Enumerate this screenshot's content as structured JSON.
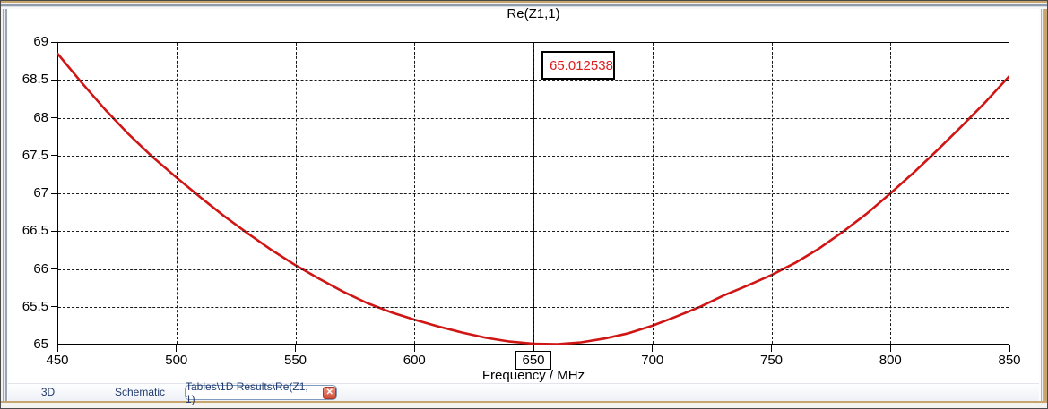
{
  "chart_data": {
    "type": "line",
    "title": "Re(Z1,1)",
    "xlabel": "Frequency / MHz",
    "ylabel": "",
    "xlim": [
      450,
      850
    ],
    "ylim": [
      65,
      69
    ],
    "xticks": [
      450,
      500,
      550,
      600,
      650,
      700,
      750,
      800,
      850
    ],
    "yticks": [
      65,
      65.5,
      66,
      66.5,
      67,
      67.5,
      68,
      68.5,
      69
    ],
    "grid": true,
    "grid_style": "dashed",
    "series": [
      {
        "name": "Re(Z1,1)",
        "color": "#d01515",
        "x": [
          450,
          460,
          470,
          480,
          490,
          500,
          510,
          520,
          530,
          540,
          550,
          560,
          570,
          580,
          590,
          600,
          610,
          620,
          630,
          640,
          650,
          660,
          670,
          680,
          690,
          700,
          710,
          720,
          730,
          740,
          750,
          760,
          770,
          780,
          790,
          800,
          810,
          820,
          830,
          840,
          850
        ],
        "y": [
          68.85,
          68.47,
          68.11,
          67.78,
          67.48,
          67.21,
          66.95,
          66.7,
          66.47,
          66.25,
          66.05,
          65.87,
          65.7,
          65.55,
          65.43,
          65.33,
          65.24,
          65.16,
          65.09,
          65.04,
          65.012,
          65.005,
          65.03,
          65.08,
          65.15,
          65.25,
          65.37,
          65.5,
          65.65,
          65.78,
          65.92,
          66.08,
          66.27,
          66.49,
          66.73,
          67.0,
          67.28,
          67.58,
          67.89,
          68.21,
          68.55
        ]
      }
    ],
    "marker": {
      "x": 650,
      "tick_label": "650",
      "value_label": "65.012538",
      "value_color": "#e01b1b"
    }
  },
  "tabbar": {
    "tabs": [
      {
        "label": "3D",
        "active": false
      },
      {
        "label": "Schematic",
        "active": false
      },
      {
        "label": "Tables\\1D Results\\Re(Z1, 1)",
        "active": true
      }
    ],
    "close_glyph": "✕"
  },
  "colors": {
    "curve": "#d01515",
    "marker_text": "#e01b1b",
    "frame_tan": "#c9a56e",
    "frame_slate": "#97a3b2",
    "tab_text": "#1f3a6e",
    "tab_border": "#7f9bc0",
    "close_bg": "#d05139",
    "grid": "#1a1a1a"
  }
}
